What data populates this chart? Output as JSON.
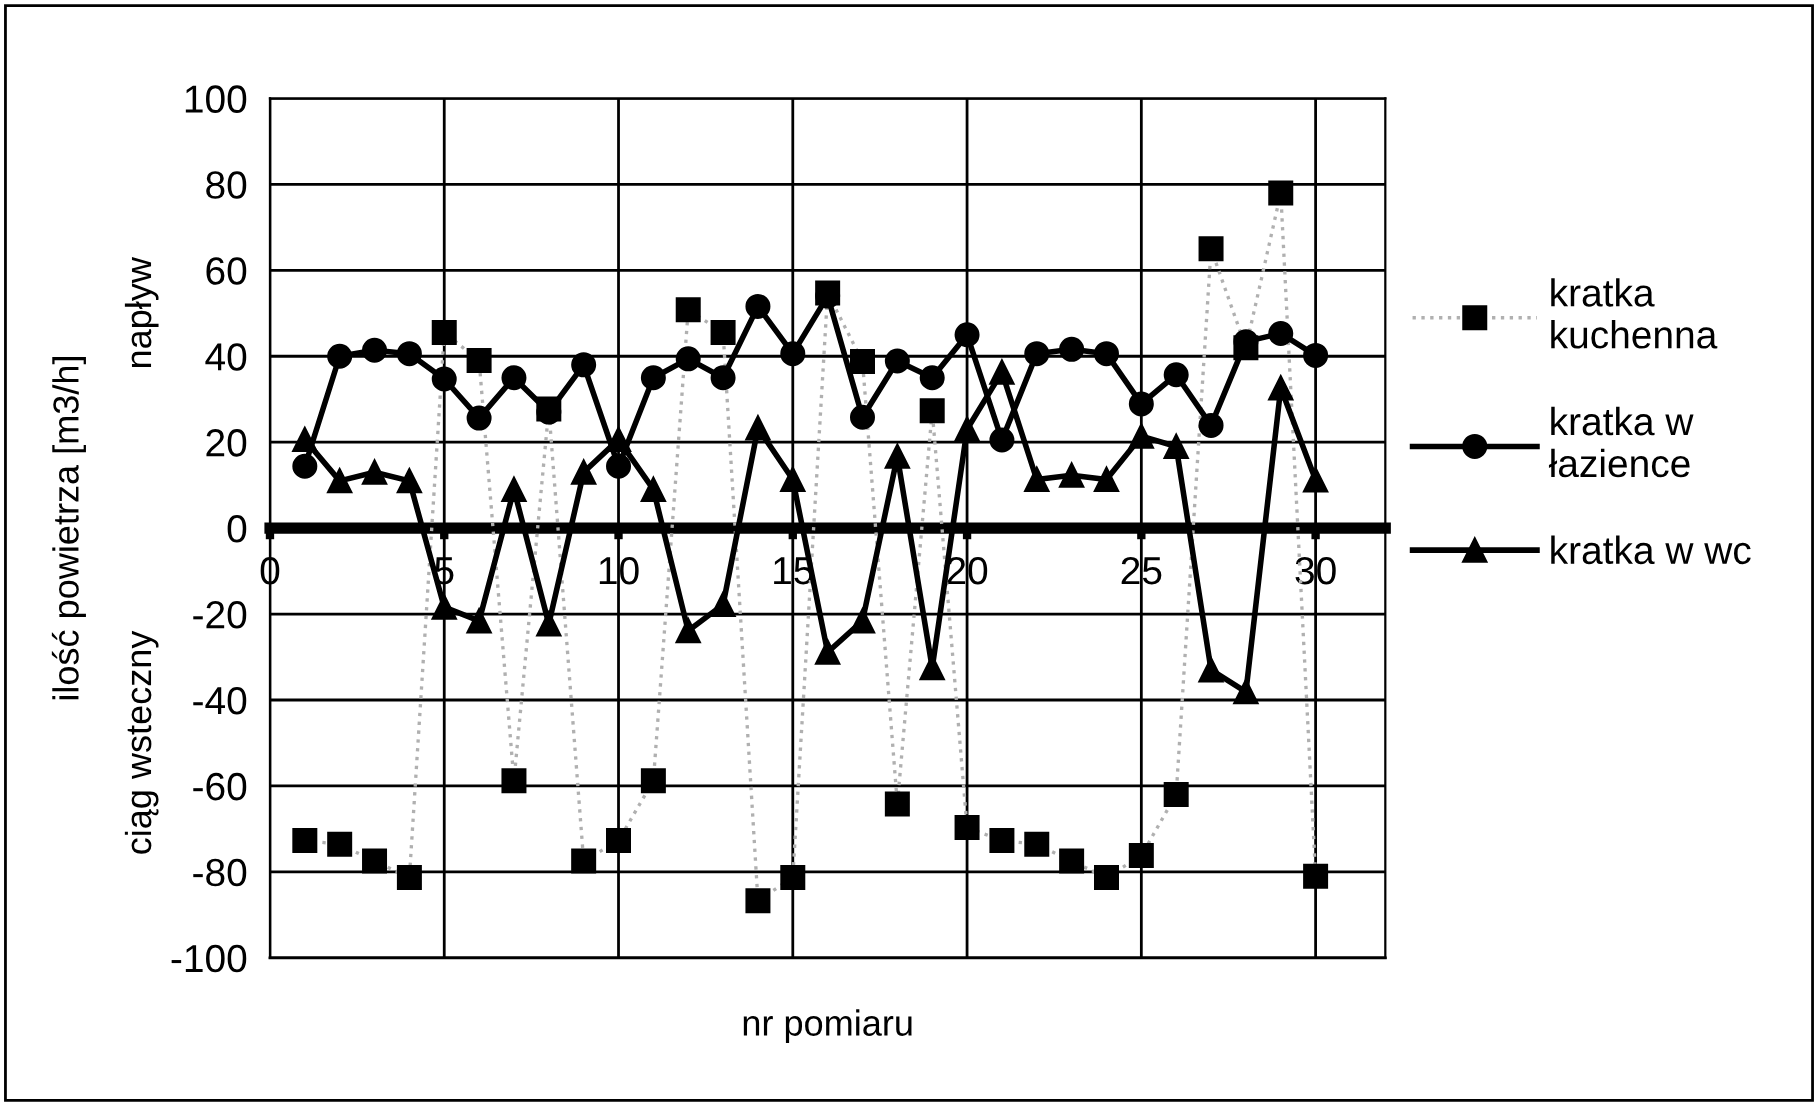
{
  "chart_data": {
    "type": "line",
    "xlabel": "nr pomiaru",
    "ylabel": "ilość powietrza [m3/h]",
    "annotations": [
      "napływ",
      "ciąg wsteczny"
    ],
    "x": [
      1,
      2,
      3,
      4,
      5,
      6,
      7,
      8,
      9,
      10,
      11,
      12,
      13,
      14,
      15,
      16,
      17,
      18,
      19,
      20,
      21,
      22,
      23,
      24,
      25,
      26,
      27,
      28,
      29,
      30
    ],
    "series": [
      {
        "name": "kratka kuchenna",
        "color": "#000000",
        "marker": "square",
        "line_style": "dotted",
        "values": [
          -72.7,
          -73.6,
          -77.5,
          -81.3,
          45.5,
          39,
          -58.8,
          27.7,
          -77.5,
          -72.7,
          -58.8,
          50.8,
          45.5,
          -86.7,
          -81.3,
          54.7,
          38.8,
          -64.2,
          27.3,
          -69.7,
          -72.7,
          -73.6,
          -77.5,
          -81.3,
          -76.2,
          -62,
          65,
          42,
          78,
          -81
        ]
      },
      {
        "name": "kratka w łazience",
        "color": "#000000",
        "marker": "circle",
        "line_style": "solid",
        "values": [
          14.4,
          40,
          41.4,
          40.6,
          34.7,
          25.6,
          35,
          27,
          38,
          14.4,
          35,
          39.4,
          35,
          51.6,
          40.6,
          54,
          25.8,
          38.9,
          35,
          45,
          20.5,
          40.6,
          41.6,
          40.6,
          28.9,
          35.7,
          23.9,
          43.4,
          45.3,
          40.2
        ]
      },
      {
        "name": "kratka w wc",
        "color": "#000000",
        "marker": "triangle",
        "line_style": "solid",
        "values": [
          20.6,
          11,
          13,
          11,
          -18.4,
          -21.6,
          9,
          -22.3,
          13,
          20.6,
          9,
          -23.9,
          -17.8,
          23.3,
          11.3,
          -28.9,
          -21.6,
          16.7,
          -32.5,
          23,
          36.3,
          11.3,
          12.3,
          11.3,
          21.4,
          19,
          -33,
          -38.1,
          32.6,
          11.2
        ]
      }
    ],
    "xlim": [
      0,
      32
    ],
    "xticks": [
      0,
      5,
      10,
      15,
      20,
      25,
      30
    ],
    "ylim": [
      -100,
      100
    ],
    "yticks": [
      -100,
      -80,
      -60,
      -40,
      -20,
      0,
      20,
      40,
      60,
      80,
      100
    ],
    "grid": true,
    "legend": "right"
  }
}
